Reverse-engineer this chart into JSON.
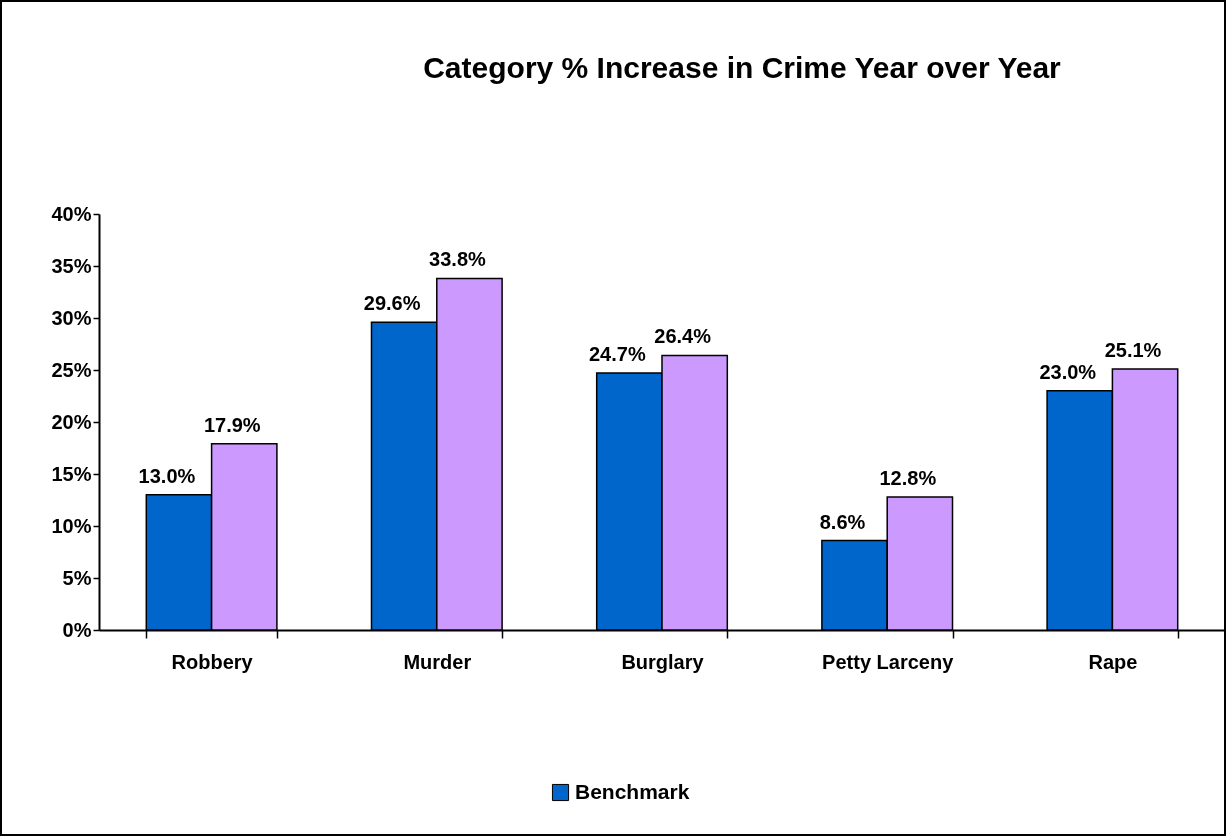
{
  "chart_data": {
    "type": "bar",
    "title": "Category % Increase in Crime Year over Year",
    "categories": [
      "Robbery",
      "Murder",
      "Burglary",
      "Petty Larceny",
      "Rape"
    ],
    "series": [
      {
        "name": "Benchmark",
        "color": "#0066cc",
        "values": [
          13.0,
          29.6,
          24.7,
          8.6,
          23.0
        ],
        "value_labels": [
          "13.0%",
          "29.6%",
          "24.7%",
          "8.6%",
          "23.0%"
        ]
      },
      {
        "color": "#cc99ff",
        "values": [
          17.9,
          33.8,
          26.4,
          12.8,
          25.1
        ],
        "value_labels": [
          "17.9%",
          "33.8%",
          "26.4%",
          "12.8%",
          "25.1%"
        ]
      }
    ],
    "ylim": [
      0,
      40
    ],
    "yticks": [
      {
        "value": 0,
        "label": "0%"
      },
      {
        "value": 5,
        "label": "5%"
      },
      {
        "value": 10,
        "label": "10%"
      },
      {
        "value": 15,
        "label": "15%"
      },
      {
        "value": 20,
        "label": "20%"
      },
      {
        "value": 25,
        "label": "25%"
      },
      {
        "value": 30,
        "label": "30%"
      },
      {
        "value": 35,
        "label": "35%"
      },
      {
        "value": 40,
        "label": "40%"
      }
    ],
    "grid": false,
    "legend": "bottom"
  }
}
